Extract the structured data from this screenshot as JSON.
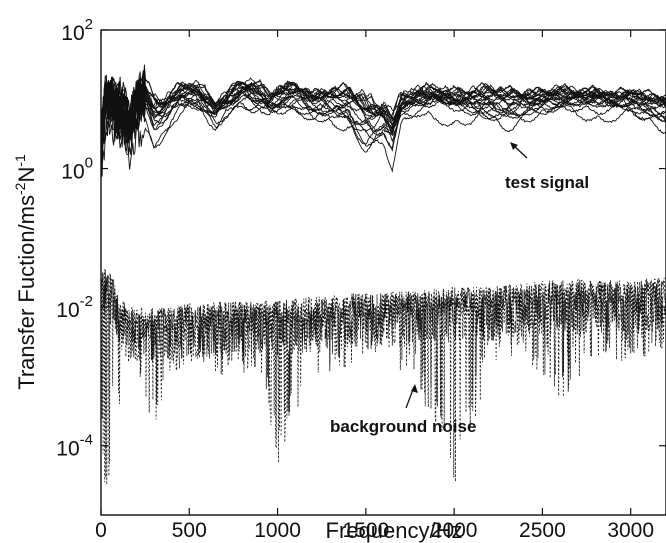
{
  "chart_data": {
    "type": "line",
    "title": "",
    "xlabel": "Frequency/Hz",
    "ylabel_text": "Transfer Fuction/ms",
    "ylabel_sup1": "-2",
    "ylabel_mid": "N",
    "ylabel_sup2": "-1",
    "xscale": "linear",
    "yscale": "log",
    "xlim": [
      0,
      3200
    ],
    "ylim_exp": [
      -5,
      2
    ],
    "xticks": [
      "0",
      "500",
      "1000",
      "1500",
      "2000",
      "2500",
      "3000"
    ],
    "yticks": [
      {
        "base": "10",
        "exp": "2"
      },
      {
        "base": "10",
        "exp": "0"
      },
      {
        "base": "10",
        "exp": "-2"
      },
      {
        "base": "10",
        "exp": "-4"
      }
    ],
    "grid": false,
    "annotations": [
      {
        "text": "test signal",
        "x": 2300,
        "y_log10": 0.3
      },
      {
        "text": "background noise",
        "x": 1800,
        "y_log10": -3.05
      }
    ],
    "series": [
      {
        "style": "solid",
        "x": [
          0,
          25,
          50,
          75,
          100,
          130,
          160,
          200,
          250,
          300,
          350,
          400,
          450,
          500,
          550,
          600,
          650,
          700,
          750,
          800,
          850,
          900,
          950,
          1000,
          1100,
          1200,
          1300,
          1400,
          1500,
          1550,
          1600,
          1650,
          1700,
          1800,
          1900,
          2000,
          2100,
          2200,
          2300,
          2400,
          2500,
          2600,
          2700,
          2800,
          2900,
          3000,
          3100,
          3200
        ],
        "y_log10_upper": [
          1.0,
          1.4,
          1.3,
          1.3,
          1.4,
          1.2,
          1.1,
          1.3,
          1.5,
          1.3,
          1.2,
          1.3,
          1.4,
          1.4,
          1.45,
          1.3,
          1.2,
          1.25,
          1.35,
          1.45,
          1.45,
          1.4,
          1.3,
          1.35,
          1.4,
          1.25,
          1.35,
          1.4,
          1.35,
          1.2,
          1.15,
          1.1,
          1.25,
          1.35,
          1.35,
          1.3,
          1.35,
          1.4,
          1.35,
          1.3,
          1.3,
          1.35,
          1.3,
          1.3,
          1.25,
          1.3,
          1.25,
          1.2
        ],
        "y_log10_lower": [
          -0.5,
          0.4,
          0.6,
          0.3,
          0.1,
          0.2,
          0.0,
          0.4,
          0.5,
          0.1,
          0.3,
          0.5,
          0.6,
          0.65,
          0.5,
          0.4,
          0.3,
          0.5,
          0.6,
          0.7,
          0.6,
          0.55,
          0.45,
          0.5,
          0.65,
          0.55,
          0.5,
          0.4,
          0.0,
          0.05,
          0.2,
          -0.2,
          0.45,
          0.55,
          0.6,
          0.55,
          0.5,
          0.5,
          0.45,
          0.5,
          0.55,
          0.55,
          0.6,
          0.6,
          0.6,
          0.6,
          0.55,
          0.5
        ]
      },
      {
        "style": "dotted",
        "x": [
          0,
          25,
          50,
          75,
          100,
          150,
          200,
          300,
          400,
          500,
          600,
          700,
          800,
          900,
          1000,
          1200,
          1400,
          1600,
          1800,
          2000,
          2200,
          2400,
          2600,
          2800,
          3000,
          3200
        ],
        "y_log10_upper": [
          -1.5,
          -1.4,
          -1.5,
          -1.6,
          -1.8,
          -2.0,
          -2.0,
          -2.0,
          -2.0,
          -1.95,
          -1.95,
          -1.9,
          -1.9,
          -1.9,
          -1.9,
          -1.85,
          -1.8,
          -1.8,
          -1.75,
          -1.7,
          -1.7,
          -1.65,
          -1.6,
          -1.6,
          -1.6,
          -1.55
        ],
        "y_log10_lower": [
          -3.8,
          -5.0,
          -4.5,
          -2.6,
          -3.6,
          -3.2,
          -2.8,
          -3.8,
          -3.0,
          -2.8,
          -2.8,
          -3.1,
          -3.0,
          -2.9,
          -4.3,
          -3.0,
          -2.9,
          -2.7,
          -3.2,
          -4.7,
          -2.9,
          -2.7,
          -3.4,
          -2.7,
          -2.8,
          -2.6
        ]
      }
    ]
  }
}
